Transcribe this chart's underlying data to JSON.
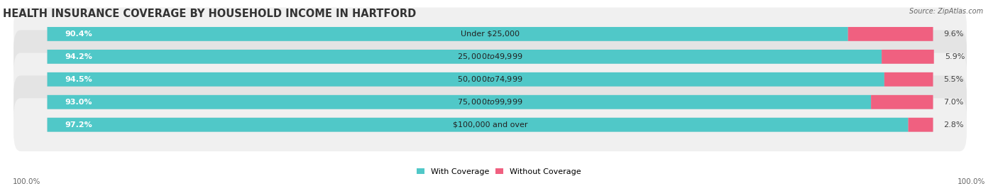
{
  "title": "HEALTH INSURANCE COVERAGE BY HOUSEHOLD INCOME IN HARTFORD",
  "source": "Source: ZipAtlas.com",
  "categories": [
    "Under $25,000",
    "$25,000 to $49,999",
    "$50,000 to $74,999",
    "$75,000 to $99,999",
    "$100,000 and over"
  ],
  "with_coverage": [
    90.4,
    94.2,
    94.5,
    93.0,
    97.2
  ],
  "without_coverage": [
    9.6,
    5.9,
    5.5,
    7.0,
    2.8
  ],
  "color_with": "#50C8C8",
  "color_without": "#F06080",
  "fig_bg": "#FFFFFF",
  "row_bg_even": "#F0F0F0",
  "row_bg_odd": "#E4E4E4",
  "title_fontsize": 10.5,
  "label_fontsize": 8.0,
  "legend_fontsize": 8.0,
  "bar_height": 0.62,
  "x_left_label": "100.0%",
  "x_right_label": "100.0%"
}
